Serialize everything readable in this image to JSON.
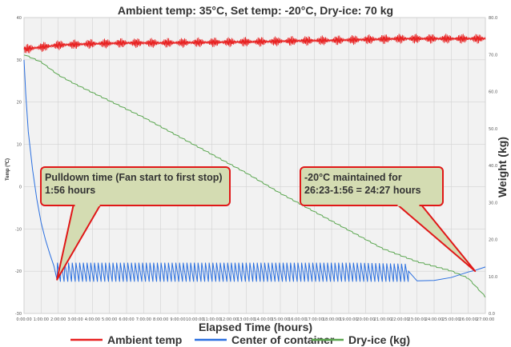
{
  "chart_data": {
    "type": "line",
    "title": "Ambient temp: 35°C, Set temp: -20°C, Dry-ice: 70 kg",
    "xlabel": "Elapsed Time (hours)",
    "ylabel_left": "Temp (℃)",
    "ylabel_right": "Weight (kg)",
    "xlim": [
      0,
      27
    ],
    "ylim_left": [
      -30,
      40
    ],
    "ylim_right": [
      0,
      80
    ],
    "x_ticks": [
      "0:00:00",
      "1:00:00",
      "2:00:00",
      "3:00:00",
      "4:00:00",
      "5:00:00",
      "6:00:00",
      "7:00:00",
      "8:00:00",
      "9:00:00",
      "10:00:00",
      "11:00:00",
      "12:00:00",
      "13:00:00",
      "14:00:00",
      "15:00:00",
      "16:00:00",
      "17:00:00",
      "18:00:00",
      "19:00:00",
      "20:00:00",
      "21:00:00",
      "22:00:00",
      "23:00:00",
      "24:00:00",
      "25:00:00",
      "26:00:00",
      "27:00:00"
    ],
    "y_ticks_left": [
      "40",
      "30",
      "20",
      "10",
      "0",
      "-10",
      "-20",
      "-30"
    ],
    "y_ticks_right": [
      "80.0",
      "70.0",
      "60.0",
      "50.0",
      "40.0",
      "30.0",
      "20.0",
      "10.0",
      "0.0"
    ],
    "grid": true,
    "legend_position": "bottom",
    "series": [
      {
        "name": "Ambient temp",
        "axis": "left",
        "color": "#e82020",
        "x": [
          0,
          1,
          2,
          4,
          6,
          8,
          10,
          12,
          14,
          16,
          18,
          20,
          22,
          24,
          26,
          27
        ],
        "y": [
          32.5,
          33.0,
          33.5,
          33.8,
          34.0,
          34.0,
          34.1,
          34.2,
          34.3,
          34.5,
          34.6,
          34.8,
          35.0,
          35.0,
          35.0,
          35.0
        ],
        "oscillation_amplitude": 1.2
      },
      {
        "name": "Center of container",
        "axis": "left",
        "color": "#2a6fe0",
        "x": [
          0,
          0.1,
          0.25,
          0.5,
          0.75,
          1.0,
          1.25,
          1.5,
          1.75,
          1.93,
          22.5,
          23.0,
          24.0,
          25.0,
          26.0,
          26.4,
          27.0
        ],
        "y": [
          30.0,
          22.0,
          13.0,
          4.0,
          -3.0,
          -8.5,
          -12.5,
          -15.8,
          -18.8,
          -22.0,
          -20.0,
          -22.3,
          -22.2,
          -21.5,
          -20.2,
          -19.8,
          -19.0
        ],
        "cycle_top": -18.0,
        "cycle_bottom": -22.5
      },
      {
        "name": "Dry-ice (kg)",
        "axis": "right",
        "color": "#5aa64f",
        "x": [
          0,
          1,
          2,
          3,
          5,
          7,
          9,
          11,
          13,
          15,
          17,
          19,
          21,
          23,
          25,
          26,
          27
        ],
        "y": [
          70.0,
          68.0,
          64.5,
          62.0,
          57.5,
          53.0,
          48.0,
          43.0,
          38.0,
          32.5,
          27.5,
          22.5,
          17.5,
          14.0,
          11.5,
          9.5,
          4.5
        ]
      }
    ],
    "annotations": [
      {
        "lines": [
          "Pulldown time (Fan start to first stop)",
          "1:56 hours"
        ],
        "target_x": 1.93,
        "target_y": -22.0
      },
      {
        "lines": [
          "-20°C maintained for",
          "26:23-1:56 = 24:27 hours"
        ],
        "target_x": 26.4,
        "target_y": -20.0
      }
    ]
  }
}
